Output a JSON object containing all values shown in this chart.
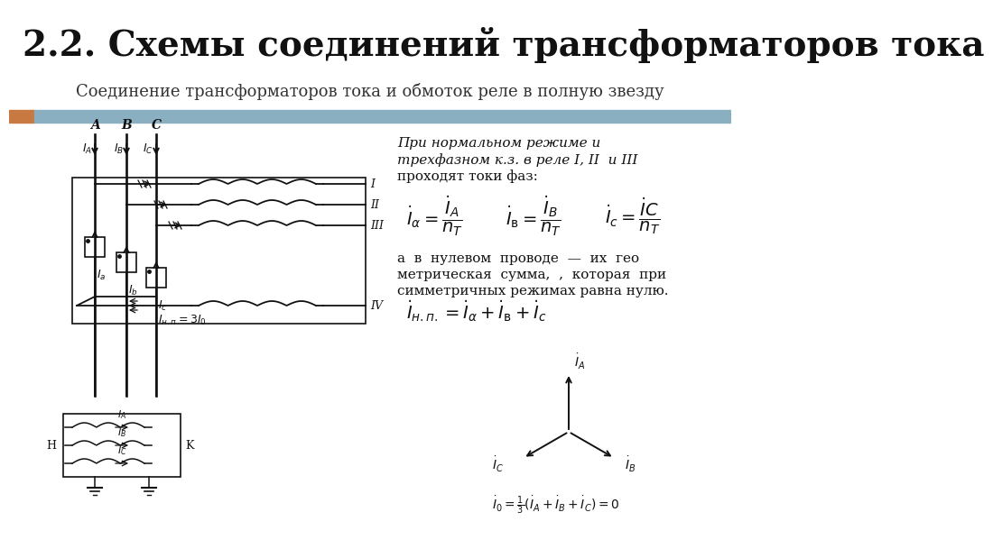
{
  "title": "2.2. Схемы соединений трансформаторов тока",
  "subtitle": "Соединение трансформаторов тока и обмоток реле в полную звезду",
  "title_fontsize": 28,
  "subtitle_fontsize": 13,
  "bg_color": "#ffffff",
  "bar_color_orange": "#c87941",
  "bar_color_blue": "#8aafc0",
  "text_italic1": "При нормальном режиме и",
  "text_italic2": "трехфазном к.з. в реле I, II  и III",
  "text_italic3": "проходят токи фаз:",
  "text_para": "а  в  нулевом  проводе  —  их  гео\nметрическая  сумма,  ,  которая  при\nсимметричных режимах равна нулю."
}
